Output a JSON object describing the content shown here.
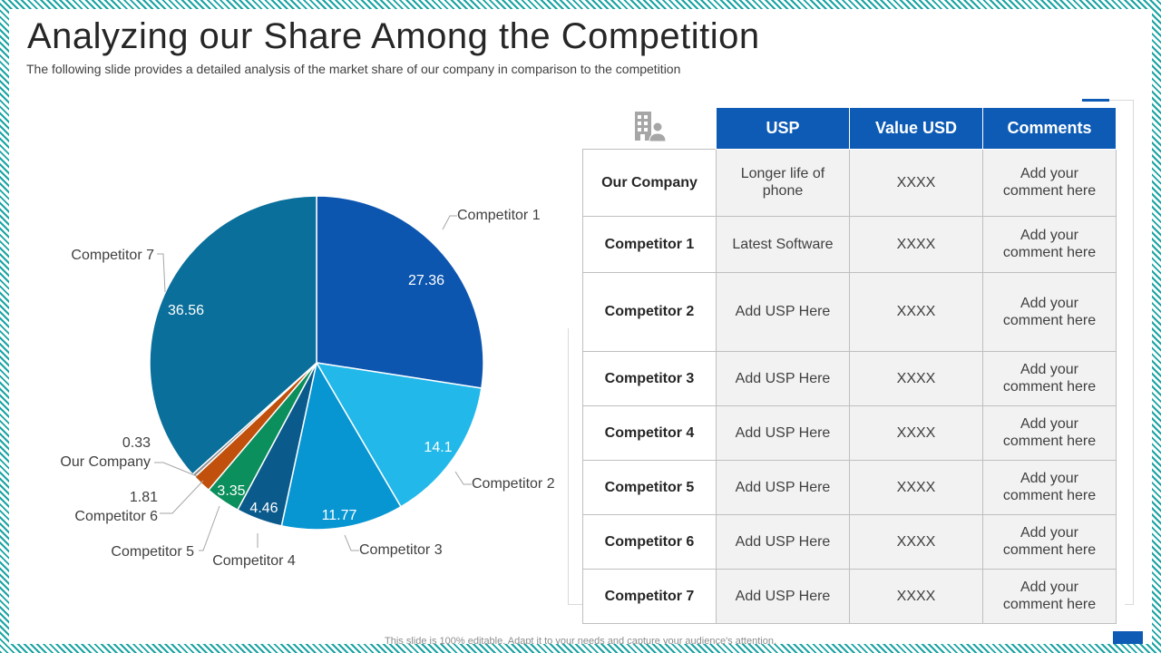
{
  "title": "Analyzing our Share Among the Competition",
  "subtitle": "The following slide provides a detailed analysis of the market share of our company in comparison to the competition",
  "footer": "This slide is 100% editable. Adapt it to your needs and capture your audience's attention.",
  "icons": {
    "header_icon": "building-person-icon"
  },
  "chart_data": {
    "type": "pie",
    "slices": [
      {
        "label": "Competitor 1",
        "value": 27.36,
        "color": "#0d56b0"
      },
      {
        "label": "Competitor 2",
        "value": 14.1,
        "color": "#22b8ea"
      },
      {
        "label": "Competitor 3",
        "value": 11.77,
        "color": "#0796d2"
      },
      {
        "label": "Competitor 4",
        "value": 4.46,
        "color": "#0b5a8c"
      },
      {
        "label": "Competitor 5",
        "value": 3.35,
        "color": "#0b8f5c"
      },
      {
        "label": "Competitor 6",
        "value": 1.81,
        "color": "#c0500c"
      },
      {
        "label": "Our Company",
        "value": 0.33,
        "color": "#8c8c8c"
      },
      {
        "label": "Competitor 7",
        "value": 36.56,
        "color": "#0a6f9a"
      }
    ]
  },
  "table": {
    "headers": [
      "USP",
      "Value USD",
      "Comments"
    ],
    "rows": [
      {
        "name": "Our Company",
        "usp": "Longer life of phone",
        "value": "XXXX",
        "comment": "Add your comment here"
      },
      {
        "name": "Competitor 1",
        "usp": "Latest Software",
        "value": "XXXX",
        "comment": "Add your comment here"
      },
      {
        "name": "Competitor 2",
        "usp": "Add USP Here",
        "value": "XXXX",
        "comment": "Add your comment here"
      },
      {
        "name": "Competitor 3",
        "usp": "Add USP Here",
        "value": "XXXX",
        "comment": "Add your comment here"
      },
      {
        "name": "Competitor 4",
        "usp": "Add USP Here",
        "value": "XXXX",
        "comment": "Add your comment here"
      },
      {
        "name": "Competitor 5",
        "usp": "Add USP Here",
        "value": "XXXX",
        "comment": "Add your comment here"
      },
      {
        "name": "Competitor 6",
        "usp": "Add USP Here",
        "value": "XXXX",
        "comment": "Add your comment here"
      },
      {
        "name": "Competitor 7",
        "usp": "Add USP Here",
        "value": "XXXX",
        "comment": "Add your comment here"
      }
    ]
  }
}
